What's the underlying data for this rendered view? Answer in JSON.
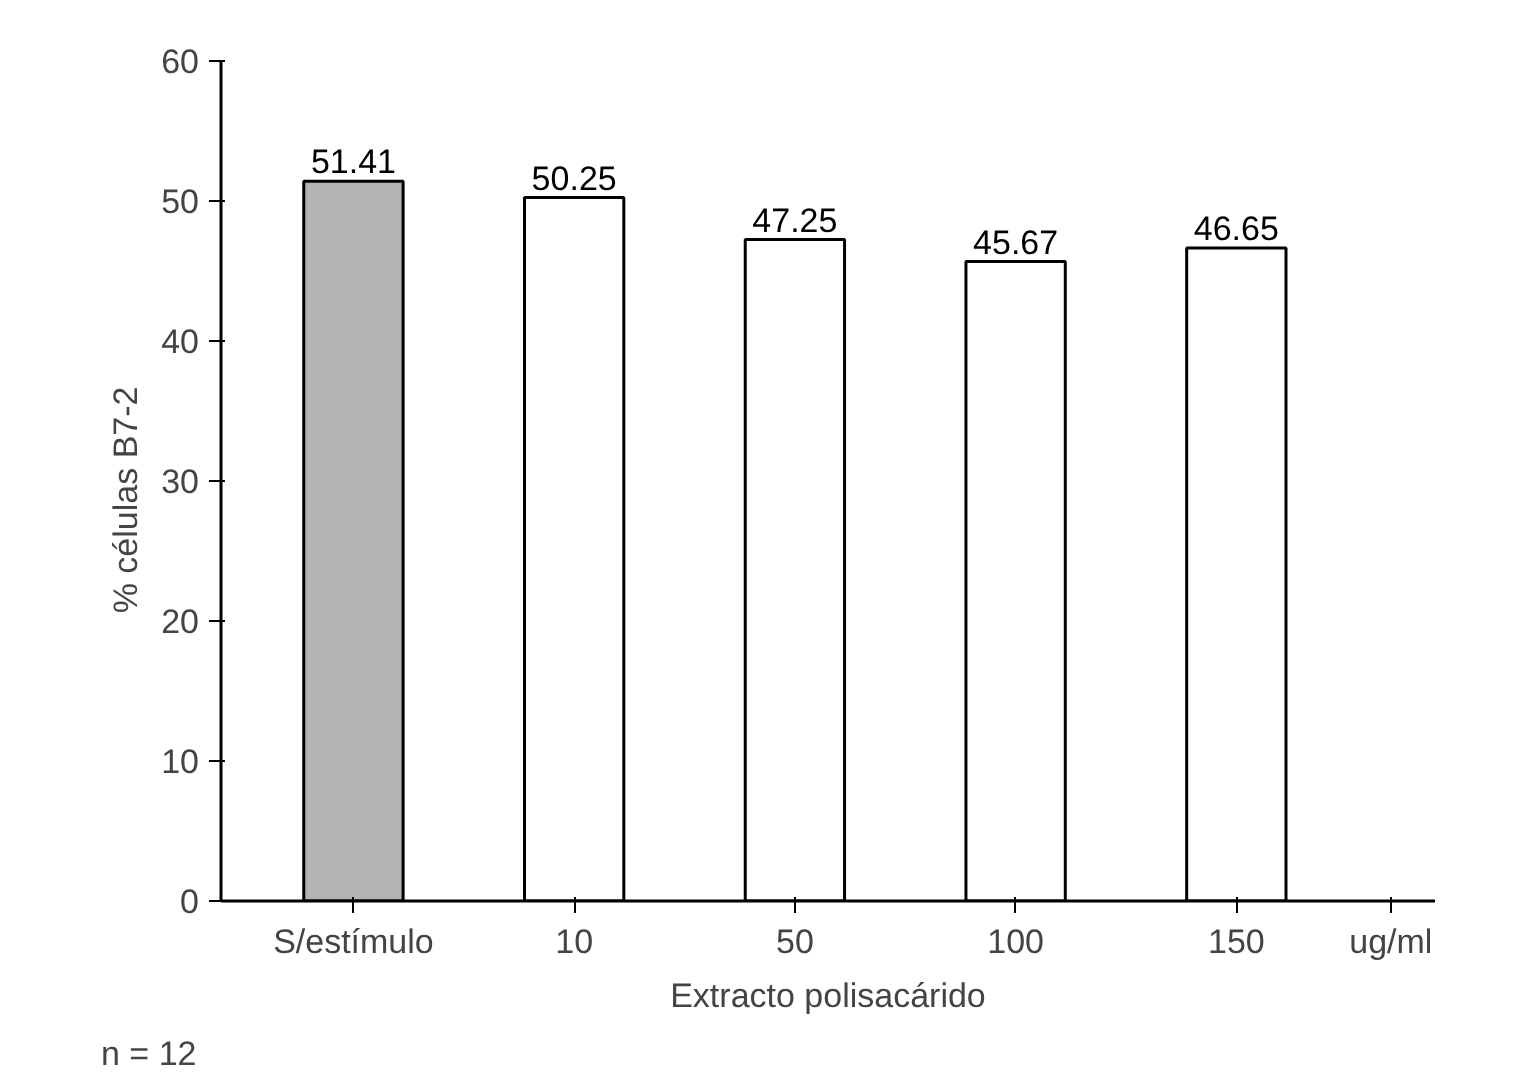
{
  "chart_data": {
    "type": "bar",
    "categories": [
      "S/estímulo",
      "10",
      "50",
      "100",
      "150"
    ],
    "values": [
      51.41,
      50.25,
      47.25,
      45.67,
      46.65
    ],
    "colors": [
      "#b4b4b4",
      "#ffffff",
      "#ffffff",
      "#ffffff",
      "#ffffff"
    ],
    "ylim": [
      0,
      60
    ],
    "yticks": [
      0,
      10,
      20,
      30,
      40,
      50,
      60
    ],
    "ylabel": "%   células   B7-2",
    "xlabel": "Extracto polisacárido",
    "data_labels": true,
    "grid": false,
    "annotations": [
      "ug/ml",
      "n = 12"
    ]
  }
}
